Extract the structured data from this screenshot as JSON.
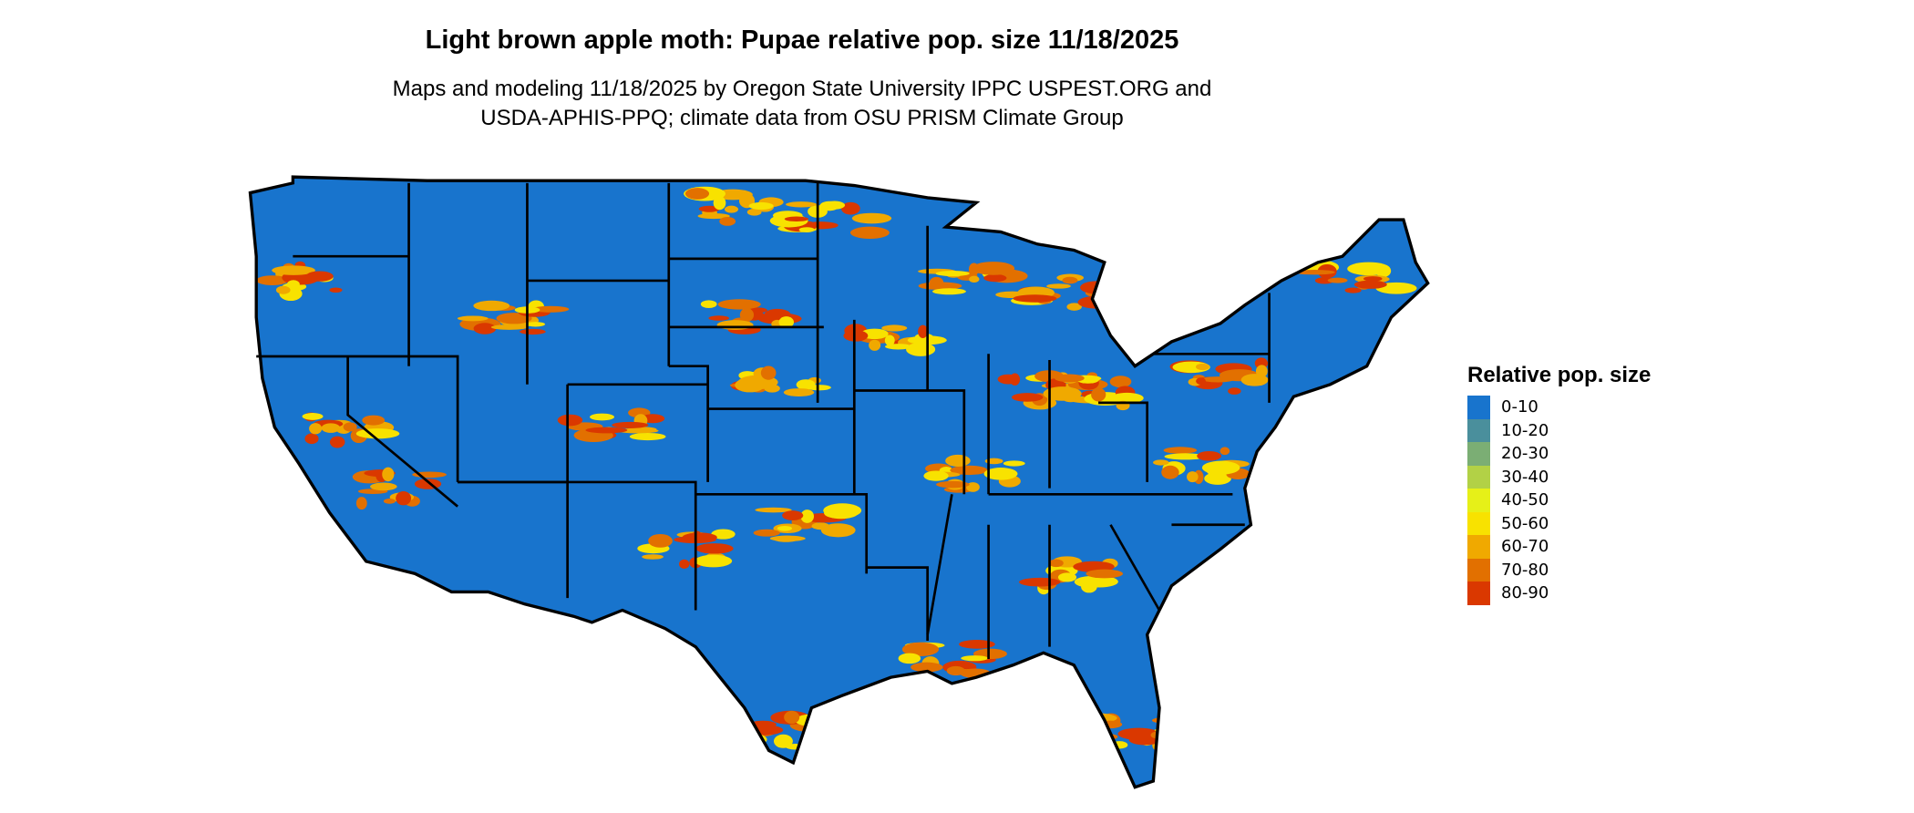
{
  "chart_data": {
    "type": "heatmap",
    "title": "Light brown apple moth: Pupae relative pop. size 11/18/2025",
    "subtitle_lines": [
      "Maps and modeling 11/18/2025 by Oregon State University IPPC USPEST.ORG and",
      "USDA-APHIS-PPQ; climate data from OSU PRISM Climate Group"
    ],
    "legend": {
      "title": "Relative pop. size",
      "placement": "right",
      "classes": [
        {
          "label": "0-10",
          "color": "#1874CD"
        },
        {
          "label": "10-20",
          "color": "#4A8F9C"
        },
        {
          "label": "20-30",
          "color": "#7BAE74"
        },
        {
          "label": "30-40",
          "color": "#B2D146"
        },
        {
          "label": "40-50",
          "color": "#E6F018"
        },
        {
          "label": "50-60",
          "color": "#F8E200"
        },
        {
          "label": "60-70",
          "color": "#F0A900"
        },
        {
          "label": "70-80",
          "color": "#E27000"
        },
        {
          "label": "80-90",
          "color": "#DA3800"
        }
      ]
    },
    "region": "Contiguous United States"
  }
}
